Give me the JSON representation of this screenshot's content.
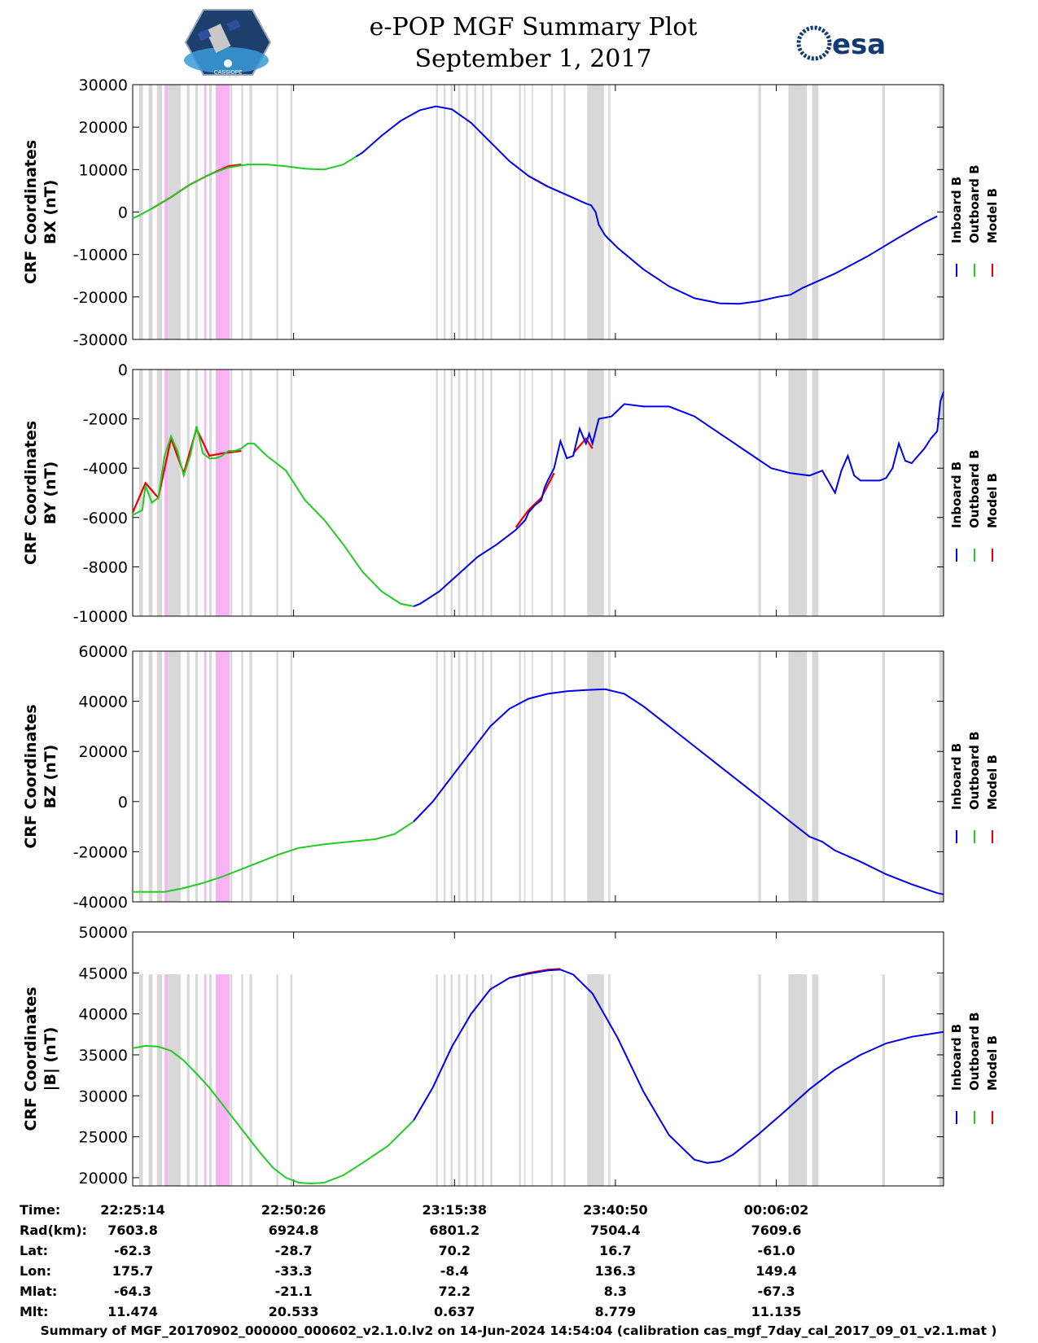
{
  "header": {
    "title": "e-POP MGF Summary Plot",
    "date": "September 1, 2017",
    "logo_left": "CASSIOPE",
    "logo_right": "esa"
  },
  "colors": {
    "inboard": "#0000ee",
    "outboard": "#22cc22",
    "model": "#ee0000",
    "gray_band": "#d8d8d8",
    "magenta_band": "#f9b3f4"
  },
  "legend": [
    "Inboard B",
    "Outboard B",
    "Model B"
  ],
  "chart_data": [
    {
      "type": "line",
      "ylabel_line1": "CRF Coordinates",
      "ylabel_line2": "BX (nT)",
      "ylim": [
        -30000,
        30000
      ],
      "yticks": [
        "30000",
        "20000",
        "10000",
        "0",
        "-10000",
        "-20000",
        "-30000"
      ],
      "ytick_values": [
        30000,
        20000,
        10000,
        0,
        -10000,
        -20000,
        -30000
      ],
      "x_min": [
        0,
        100
      ],
      "switch_min": 35,
      "series_points": [
        [
          0,
          -1500
        ],
        [
          1,
          -800
        ],
        [
          3,
          800
        ],
        [
          6,
          3500
        ],
        [
          9,
          6500
        ],
        [
          12,
          8800
        ],
        [
          15,
          10500
        ],
        [
          18,
          11200
        ],
        [
          21,
          11200
        ],
        [
          24,
          10800
        ],
        [
          27,
          10200
        ],
        [
          30,
          10000
        ],
        [
          33,
          11200
        ],
        [
          36,
          14000
        ],
        [
          39,
          18000
        ],
        [
          42,
          21500
        ],
        [
          45,
          24000
        ],
        [
          47.5,
          24900
        ],
        [
          50,
          24200
        ],
        [
          53,
          21000
        ],
        [
          56,
          16500
        ],
        [
          59,
          12000
        ],
        [
          62,
          8500
        ],
        [
          65,
          6000
        ],
        [
          68,
          4000
        ],
        [
          71,
          2000
        ],
        [
          71.8,
          1600
        ],
        [
          72.5,
          0
        ],
        [
          73,
          -3000
        ],
        [
          74,
          -5500
        ],
        [
          76,
          -8500
        ],
        [
          80,
          -13500
        ],
        [
          84,
          -17500
        ],
        [
          88,
          -20300
        ],
        [
          92,
          -21500
        ],
        [
          95,
          -21600
        ],
        [
          98,
          -21000
        ],
        [
          101,
          -20000
        ],
        [
          103,
          -19500
        ],
        [
          105,
          -17800
        ],
        [
          110,
          -14500
        ],
        [
          115,
          -10500
        ],
        [
          120,
          -6000
        ],
        [
          124,
          -2500
        ],
        [
          126,
          -1000
        ]
      ],
      "model_segments": [
        [
          [
            3,
            800
          ],
          [
            6,
            3500
          ],
          [
            9,
            6500
          ],
          [
            12,
            8800
          ],
          [
            15,
            10800
          ],
          [
            17,
            11200
          ]
        ],
        [
          [
            62,
            8500
          ],
          [
            65,
            6000
          ]
        ]
      ]
    },
    {
      "type": "line",
      "ylabel_line1": "CRF Coordinates",
      "ylabel_line2": "BY (nT)",
      "ylim": [
        -10000,
        0
      ],
      "yticks": [
        "0",
        "-2000",
        "-4000",
        "-6000",
        "-8000",
        "-10000"
      ],
      "ytick_values": [
        0,
        -2000,
        -4000,
        -6000,
        -8000,
        -10000
      ],
      "switch_min": 44,
      "series_points": [
        [
          0,
          -5900
        ],
        [
          1.5,
          -5700
        ],
        [
          2,
          -4700
        ],
        [
          3,
          -5400
        ],
        [
          4,
          -5200
        ],
        [
          5,
          -3500
        ],
        [
          6,
          -2700
        ],
        [
          7,
          -3300
        ],
        [
          7.5,
          -3800
        ],
        [
          8,
          -4300
        ],
        [
          9,
          -3500
        ],
        [
          10,
          -2300
        ],
        [
          11,
          -3400
        ],
        [
          12,
          -3600
        ],
        [
          13,
          -3600
        ],
        [
          14,
          -3500
        ],
        [
          15,
          -3300
        ],
        [
          16,
          -3300
        ],
        [
          17,
          -3200
        ],
        [
          18,
          -3000
        ],
        [
          19,
          -3000
        ],
        [
          21,
          -3500
        ],
        [
          24,
          -4100
        ],
        [
          27,
          -5300
        ],
        [
          30,
          -6100
        ],
        [
          33,
          -7100
        ],
        [
          36,
          -8200
        ],
        [
          39,
          -9000
        ],
        [
          42,
          -9500
        ],
        [
          44,
          -9600
        ],
        [
          45,
          -9500
        ],
        [
          48,
          -9000
        ],
        [
          51,
          -8300
        ],
        [
          54,
          -7600
        ],
        [
          57,
          -7100
        ],
        [
          60,
          -6500
        ],
        [
          61.5,
          -6100
        ],
        [
          62,
          -5800
        ],
        [
          63,
          -5500
        ],
        [
          64,
          -5300
        ],
        [
          64.5,
          -4800
        ],
        [
          65,
          -4500
        ],
        [
          66,
          -4000
        ],
        [
          67,
          -2900
        ],
        [
          68,
          -3600
        ],
        [
          69,
          -3500
        ],
        [
          70,
          -2400
        ],
        [
          71,
          -3000
        ],
        [
          71.5,
          -2600
        ],
        [
          72,
          -3000
        ],
        [
          73,
          -2000
        ],
        [
          75,
          -1900
        ],
        [
          77,
          -1400
        ],
        [
          80,
          -1500
        ],
        [
          84,
          -1500
        ],
        [
          88,
          -1900
        ],
        [
          92,
          -2600
        ],
        [
          96,
          -3300
        ],
        [
          100,
          -4000
        ],
        [
          103,
          -4200
        ],
        [
          106,
          -4300
        ],
        [
          108,
          -4100
        ],
        [
          110,
          -5000
        ],
        [
          111,
          -4100
        ],
        [
          112,
          -3500
        ],
        [
          113,
          -4300
        ],
        [
          114,
          -4500
        ],
        [
          117,
          -4500
        ],
        [
          118,
          -4400
        ],
        [
          119,
          -4000
        ],
        [
          120,
          -3000
        ],
        [
          121,
          -3700
        ],
        [
          122,
          -3800
        ],
        [
          123,
          -3500
        ],
        [
          124,
          -3200
        ],
        [
          125,
          -2800
        ],
        [
          126,
          -2500
        ],
        [
          126.5,
          -1300
        ],
        [
          127,
          -900
        ]
      ],
      "model_segments": [
        [
          [
            0,
            -5800
          ],
          [
            2,
            -4600
          ],
          [
            4,
            -5200
          ],
          [
            6,
            -2800
          ],
          [
            8,
            -4200
          ],
          [
            10,
            -2400
          ],
          [
            12,
            -3500
          ],
          [
            14,
            -3400
          ],
          [
            17,
            -3300
          ]
        ],
        [
          [
            60,
            -6400
          ],
          [
            62,
            -5700
          ],
          [
            64,
            -5200
          ],
          [
            66,
            -4200
          ]
        ],
        [
          [
            69,
            -3400
          ],
          [
            71,
            -2800
          ],
          [
            72,
            -3200
          ]
        ]
      ]
    },
    {
      "type": "line",
      "ylabel_line1": "CRF Coordinates",
      "ylabel_line2": "BZ (nT)",
      "ylim": [
        -40000,
        60000
      ],
      "yticks": [
        "60000",
        "40000",
        "20000",
        "0",
        "-20000",
        "-40000"
      ],
      "ytick_values": [
        60000,
        40000,
        20000,
        0,
        -20000,
        -40000
      ],
      "switch_min": 44,
      "series_points": [
        [
          0,
          -36000
        ],
        [
          5,
          -36000
        ],
        [
          8,
          -34500
        ],
        [
          11,
          -32500
        ],
        [
          14,
          -30000
        ],
        [
          17,
          -27000
        ],
        [
          20,
          -24000
        ],
        [
          23,
          -21000
        ],
        [
          26,
          -18500
        ],
        [
          30,
          -17000
        ],
        [
          34,
          -16000
        ],
        [
          38,
          -15000
        ],
        [
          41,
          -13000
        ],
        [
          44,
          -8000
        ],
        [
          47,
          0
        ],
        [
          50,
          10000
        ],
        [
          53,
          20000
        ],
        [
          56,
          30000
        ],
        [
          59,
          37000
        ],
        [
          62,
          41000
        ],
        [
          65,
          43000
        ],
        [
          68,
          44000
        ],
        [
          71,
          44500
        ],
        [
          74,
          44800
        ],
        [
          77,
          43000
        ],
        [
          80,
          38000
        ],
        [
          84,
          30000
        ],
        [
          88,
          22000
        ],
        [
          92,
          14000
        ],
        [
          96,
          6000
        ],
        [
          100,
          -2000
        ],
        [
          104,
          -10000
        ],
        [
          106,
          -14000
        ],
        [
          108,
          -16000
        ],
        [
          110,
          -19500
        ],
        [
          114,
          -24000
        ],
        [
          118,
          -29000
        ],
        [
          122,
          -33000
        ],
        [
          126,
          -36500
        ],
        [
          127,
          -37000
        ]
      ],
      "model_segments": []
    },
    {
      "type": "line",
      "ylabel_line1": "CRF Coordinates",
      "ylabel_line2": "|B| (nT)",
      "ylim": [
        19000,
        50000
      ],
      "yticks": [
        "50000",
        "45000",
        "40000",
        "35000",
        "30000",
        "25000",
        "20000"
      ],
      "ytick_values": [
        50000,
        45000,
        40000,
        35000,
        30000,
        25000,
        20000
      ],
      "switch_min": 44,
      "series_points": [
        [
          0,
          35800
        ],
        [
          2,
          36100
        ],
        [
          4,
          36000
        ],
        [
          6,
          35500
        ],
        [
          8,
          34300
        ],
        [
          10,
          32700
        ],
        [
          12,
          31000
        ],
        [
          14,
          29000
        ],
        [
          16,
          27000
        ],
        [
          18,
          25000
        ],
        [
          20,
          23000
        ],
        [
          22,
          21200
        ],
        [
          24,
          20000
        ],
        [
          26,
          19400
        ],
        [
          28,
          19300
        ],
        [
          30,
          19400
        ],
        [
          33,
          20300
        ],
        [
          36,
          21800
        ],
        [
          40,
          23900
        ],
        [
          44,
          27000
        ],
        [
          47,
          31000
        ],
        [
          50,
          36000
        ],
        [
          53,
          40000
        ],
        [
          56,
          43000
        ],
        [
          59,
          44400
        ],
        [
          62,
          44900
        ],
        [
          65,
          45300
        ],
        [
          67,
          45400
        ],
        [
          69,
          44800
        ],
        [
          72,
          42500
        ],
        [
          76,
          37000
        ],
        [
          80,
          30500
        ],
        [
          84,
          25200
        ],
        [
          88,
          22200
        ],
        [
          90,
          21800
        ],
        [
          92,
          22000
        ],
        [
          94,
          22800
        ],
        [
          98,
          25300
        ],
        [
          102,
          28000
        ],
        [
          106,
          30800
        ],
        [
          110,
          33200
        ],
        [
          114,
          35000
        ],
        [
          118,
          36400
        ],
        [
          122,
          37200
        ],
        [
          127,
          37800
        ]
      ],
      "model_segments": [
        [
          [
            59,
            44400
          ],
          [
            62,
            45000
          ],
          [
            65,
            45400
          ],
          [
            67,
            45500
          ]
        ]
      ]
    }
  ],
  "bands": {
    "gray": [
      [
        1,
        1.6
      ],
      [
        2.5,
        3.1
      ],
      [
        3.8,
        4.6
      ],
      [
        5.5,
        7.5
      ],
      [
        8.5,
        8.9
      ],
      [
        9.8,
        10.2
      ],
      [
        12,
        12.4
      ],
      [
        15.3,
        15.6
      ],
      [
        17,
        17.3
      ],
      [
        18.3,
        18.7
      ],
      [
        22.5,
        22.8
      ],
      [
        24.7,
        25
      ],
      [
        47.5,
        47.8
      ],
      [
        48.7,
        49
      ],
      [
        49.8,
        50.1
      ],
      [
        51,
        51.3
      ],
      [
        52.2,
        52.5
      ],
      [
        53.5,
        53.8
      ],
      [
        54.7,
        55
      ],
      [
        56,
        56.3
      ],
      [
        60.5,
        60.8
      ],
      [
        61.3,
        61.5
      ],
      [
        62.5,
        62.7
      ],
      [
        65.5,
        65.8
      ],
      [
        67.5,
        67.8
      ],
      [
        71.2,
        73.8
      ],
      [
        74.5,
        74.8
      ],
      [
        98,
        98.4
      ],
      [
        102.7,
        105.6
      ],
      [
        106.4,
        107.4
      ],
      [
        117.4,
        117.8
      ],
      [
        126.3,
        127
      ]
    ],
    "magenta": [
      [
        5,
        5.5
      ],
      [
        11.2,
        11.5
      ],
      [
        13,
        15.2
      ]
    ]
  },
  "x_axis": {
    "range_min": [
      0,
      127
    ],
    "tick_min": [
      0,
      25.2,
      50.4,
      75.6,
      100.8
    ]
  },
  "table": {
    "row_labels": [
      "Time:",
      "Rad(km):",
      "Lat:",
      "Lon:",
      "Mlat:",
      "Mlt:"
    ],
    "columns": [
      [
        "22:25:14",
        "7603.8",
        "-62.3",
        "175.7",
        "-64.3",
        "11.474"
      ],
      [
        "22:50:26",
        "6924.8",
        "-28.7",
        "-33.3",
        "-21.1",
        "20.533"
      ],
      [
        "23:15:38",
        "6801.2",
        "70.2",
        "-8.4",
        "72.2",
        "0.637"
      ],
      [
        "23:40:50",
        "7504.4",
        "16.7",
        "136.3",
        "8.3",
        "8.779"
      ],
      [
        "00:06:02",
        "7609.6",
        "-61.0",
        "149.4",
        "-67.3",
        "11.135"
      ]
    ]
  },
  "footer": "Summary of MGF_20170902_000000_000602_v2.1.0.lv2 on 14-Jun-2024 14:54:04 (calibration cas_mgf_7day_cal_2017_09_01_v2.1.mat )"
}
